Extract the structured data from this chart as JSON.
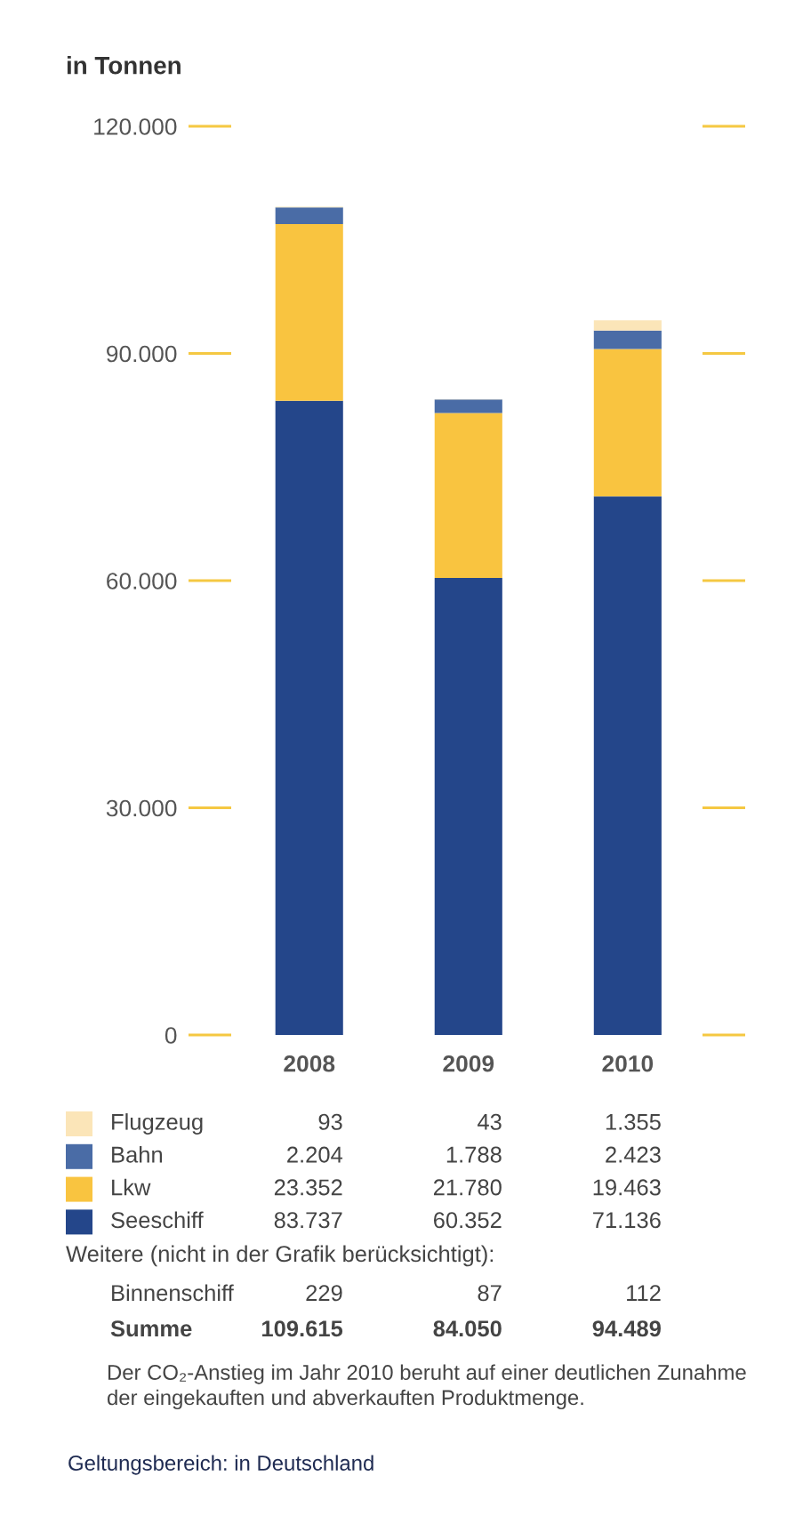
{
  "chart_data": {
    "type": "bar",
    "stacked": true,
    "ylabel": "in Tonnen",
    "categories": [
      "2008",
      "2009",
      "2010"
    ],
    "series": [
      {
        "name": "Seeschiff",
        "color": "#24468a",
        "values": [
          83737,
          60352,
          71136
        ],
        "value_labels": [
          "83.737",
          "60.352",
          "71.136"
        ]
      },
      {
        "name": "Lkw",
        "color": "#f9c440",
        "values": [
          23352,
          21780,
          19463
        ],
        "value_labels": [
          "23.352",
          "21.780",
          "19.463"
        ]
      },
      {
        "name": "Bahn",
        "color": "#4a6ca6",
        "values": [
          2204,
          1788,
          2423
        ],
        "value_labels": [
          "2.204",
          "1.788",
          "2.423"
        ]
      },
      {
        "name": "Flugzeug",
        "color": "#fbe5b8",
        "values": [
          93,
          43,
          1355
        ],
        "value_labels": [
          "93",
          "43",
          "1.355"
        ]
      }
    ],
    "ylim": [
      0,
      120000
    ],
    "yticks": [
      0,
      {
        "value": 30000,
        "label": "30.000"
      },
      {
        "value": 60000,
        "label": "60.000"
      },
      {
        "value": 90000,
        "label": "90.000"
      },
      {
        "value": 120000,
        "label": "120.000"
      }
    ],
    "legend": "bottom",
    "annotations": [
      "Weitere (nicht in der Grafik berücksichtigt):",
      "Binnenschiff\t229\t87\t112",
      "Summe\t109.615\t84.050\t94.489",
      "Der CO₂-Anstieg im Jahr 2010 beruht auf einer deutlichen Zunahme\nder eingekauften und abverkauften Produktmenge.",
      "Geltungsbereich: in Deutschland"
    ]
  }
}
